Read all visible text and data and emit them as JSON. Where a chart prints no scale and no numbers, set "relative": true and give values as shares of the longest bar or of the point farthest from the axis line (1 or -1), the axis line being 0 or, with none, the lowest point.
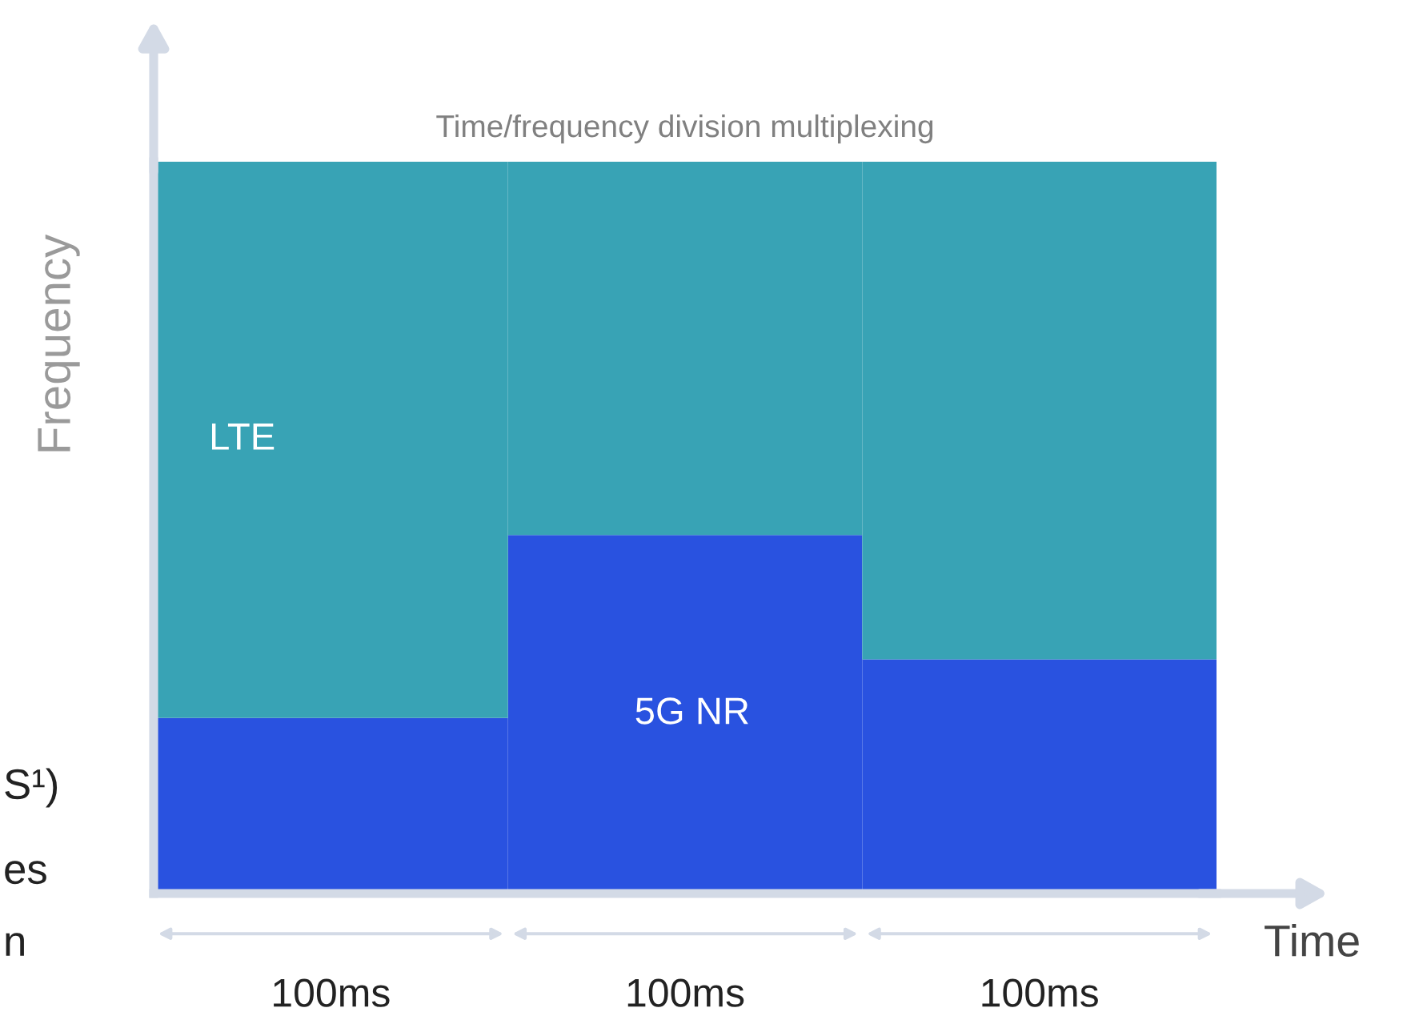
{
  "chart_data": {
    "type": "bar",
    "stacked": true,
    "relative": true,
    "title": "Time/frequency division multiplexing",
    "xlabel": "Time",
    "ylabel": "Frequency",
    "categories": [
      "100ms",
      "100ms",
      "100ms"
    ],
    "series": [
      {
        "name": "5G NR",
        "color": "#2952e0",
        "values": [
          0.24,
          0.49,
          0.32
        ]
      },
      {
        "name": "LTE",
        "color": "#38a3b5",
        "values": [
          0.76,
          0.51,
          0.68
        ]
      }
    ],
    "annotations": [
      "S¹)",
      "es",
      "n"
    ],
    "grid": false,
    "legend": false
  }
}
